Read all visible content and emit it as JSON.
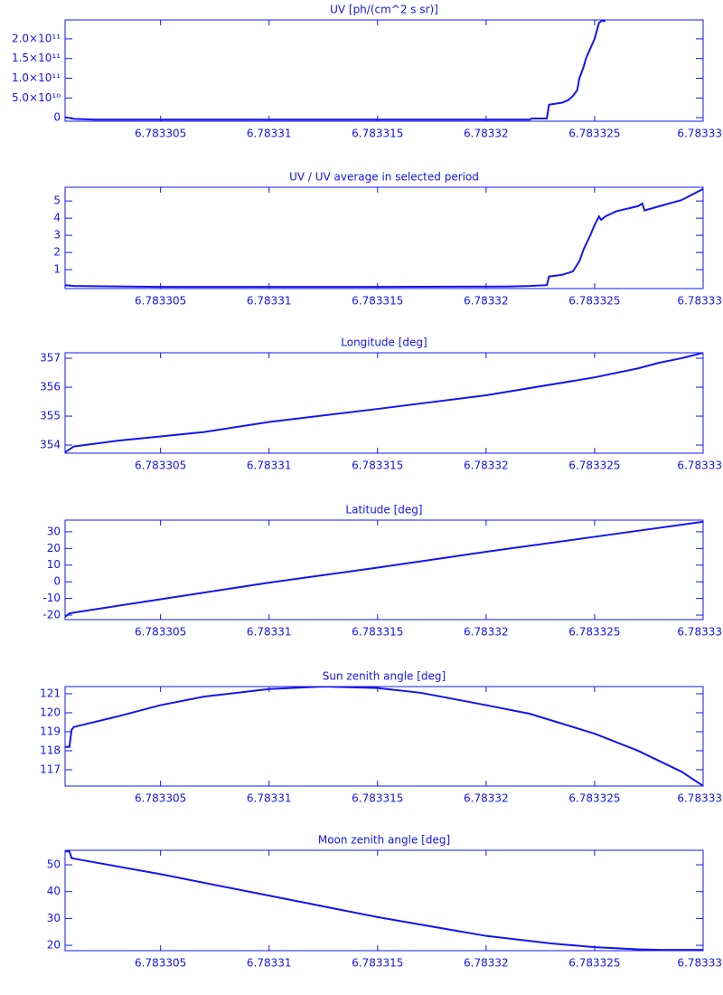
{
  "chart_data": [
    {
      "type": "line",
      "title": "UV [ph/(cm^2 s sr)]",
      "color": "#1414f0",
      "x": [
        6.7833006,
        6.783301,
        6.783302,
        6.78331,
        6.78332,
        6.783322,
        6.7833221,
        6.7833228,
        6.7833229,
        6.7833235,
        6.7833238,
        6.783324,
        6.7833242,
        6.7833243,
        6.7833245,
        6.7833246,
        6.7833248,
        6.783325,
        6.7833251,
        6.7833252,
        6.7833253,
        6.7833255
      ],
      "values": [
        1000000000,
        -3000000000,
        -5000000000,
        -5000000000,
        -5000000000,
        -5000000000,
        -2000000000,
        -2000000000,
        33000000000,
        38000000000,
        45000000000,
        55000000000,
        70000000000,
        100000000000,
        130000000000,
        150000000000,
        175000000000,
        200000000000,
        220000000000,
        240000000000,
        245000000000,
        245000000000
      ],
      "xlim": [
        6.7833006,
        6.78333
      ],
      "xticks": [
        6.783305,
        6.78331,
        6.783315,
        6.78332,
        6.783325,
        {
          "value": 6.78333,
          "label": "6.783330"
        }
      ],
      "ylim": [
        -9000000000,
        248000000000
      ],
      "yticks": [
        0,
        {
          "value": 50000000000,
          "label": "5.0×10¹⁰"
        },
        {
          "value": 100000000000,
          "label": "1.0×10¹¹"
        },
        {
          "value": 150000000000,
          "label": "1.5×10¹¹"
        },
        {
          "value": 200000000000,
          "label": "2.0×10¹¹"
        }
      ]
    },
    {
      "type": "line",
      "title": "UV / UV average in selected period",
      "color": "#1414f0",
      "x": [
        6.7833006,
        6.783301,
        6.783305,
        6.78331,
        6.783315,
        6.783321,
        6.783322,
        6.7833228,
        6.7833229,
        6.7833235,
        6.783324,
        6.7833243,
        6.7833245,
        6.7833248,
        6.783325,
        6.7833252,
        6.7833253,
        6.7833255,
        6.783326,
        6.783327,
        6.7833272,
        6.7833273,
        6.783328,
        6.783329,
        6.78333
      ],
      "values": [
        0.1,
        0.05,
        0,
        0,
        0,
        0.02,
        0.05,
        0.1,
        0.6,
        0.7,
        0.9,
        1.5,
        2.2,
        3.0,
        3.6,
        4.1,
        3.9,
        4.1,
        4.4,
        4.7,
        4.85,
        4.45,
        4.7,
        5.05,
        5.7
      ],
      "xlim": [
        6.7833006,
        6.78333
      ],
      "xticks": [
        6.783305,
        6.78331,
        6.783315,
        6.78332,
        6.783325,
        {
          "value": 6.78333,
          "label": "6.783330"
        }
      ],
      "ylim": [
        -0.1,
        5.8
      ],
      "yticks": [
        1,
        2,
        3,
        4,
        5
      ]
    },
    {
      "type": "line",
      "title": "Longitude [deg]",
      "color": "#1414f0",
      "x": [
        6.7833006,
        6.7833008,
        6.783301,
        6.783303,
        6.783305,
        6.783307,
        6.78331,
        6.783315,
        6.78332,
        6.783325,
        6.783327,
        6.783328,
        6.783329,
        6.78333
      ],
      "values": [
        353.75,
        353.85,
        353.95,
        354.15,
        354.3,
        354.45,
        354.8,
        355.25,
        355.72,
        356.34,
        356.65,
        356.85,
        357.0,
        357.19
      ],
      "xlim": [
        6.7833006,
        6.78333
      ],
      "xticks": [
        6.783305,
        6.78331,
        6.783315,
        6.78332,
        6.783325,
        {
          "value": 6.78333,
          "label": "6.783330"
        }
      ],
      "ylim": [
        353.72,
        357.19
      ],
      "yticks": [
        354,
        355,
        356,
        357
      ]
    },
    {
      "type": "line",
      "title": "Latitude [deg]",
      "color": "#1414f0",
      "x": [
        6.7833006,
        6.7833008,
        6.783301,
        6.783305,
        6.78331,
        6.783315,
        6.78332,
        6.783325,
        6.78333
      ],
      "values": [
        -21,
        -19,
        -18.5,
        -10.5,
        -0.5,
        8.5,
        18,
        27,
        36
      ],
      "xlim": [
        6.7833006,
        6.78333
      ],
      "xticks": [
        6.783305,
        6.78331,
        6.783315,
        6.78332,
        6.783325,
        {
          "value": 6.78333,
          "label": "6.783330"
        }
      ],
      "ylim": [
        -22.7,
        37
      ],
      "yticks": [
        -20,
        -10,
        0,
        10,
        20,
        30
      ]
    },
    {
      "type": "line",
      "title": "Sun zenith angle [deg]",
      "color": "#1414f0",
      "x": [
        6.7833006,
        6.7833008,
        6.7833009,
        6.783301,
        6.783303,
        6.783305,
        6.783307,
        6.78331,
        6.7833125,
        6.783315,
        6.783317,
        6.78332,
        6.783322,
        6.783325,
        6.783327,
        6.783329,
        6.78333
      ],
      "values": [
        118.2,
        118.2,
        119.1,
        119.25,
        119.8,
        120.4,
        120.85,
        121.25,
        121.38,
        121.3,
        121.05,
        120.4,
        119.95,
        118.9,
        118.0,
        116.9,
        116.15
      ],
      "xlim": [
        6.7833006,
        6.78333
      ],
      "xticks": [
        6.783305,
        6.78331,
        6.783315,
        6.78332,
        6.783325,
        {
          "value": 6.78333,
          "label": "6.783330"
        }
      ],
      "ylim": [
        116.14,
        121.38
      ],
      "yticks": [
        117,
        118,
        119,
        120,
        121
      ]
    },
    {
      "type": "line",
      "title": "Moon zenith angle [deg]",
      "color": "#1414f0",
      "x": [
        6.7833006,
        6.7833008,
        6.7833009,
        6.783301,
        6.783305,
        6.78331,
        6.783315,
        6.78332,
        6.783323,
        6.783325,
        6.783327,
        6.783328,
        6.78333
      ],
      "values": [
        55,
        55,
        52.5,
        52.3,
        46.5,
        38.5,
        30.5,
        23.5,
        20.7,
        19.3,
        18.5,
        18.3,
        18.3
      ],
      "xlim": [
        6.7833006,
        6.78333
      ],
      "xticks": [
        6.783305,
        6.78331,
        6.783315,
        6.78332,
        6.783325,
        {
          "value": 6.78333,
          "label": "6.783330"
        }
      ],
      "ylim": [
        18,
        55.4
      ],
      "yticks": [
        20,
        30,
        40,
        50
      ]
    }
  ]
}
